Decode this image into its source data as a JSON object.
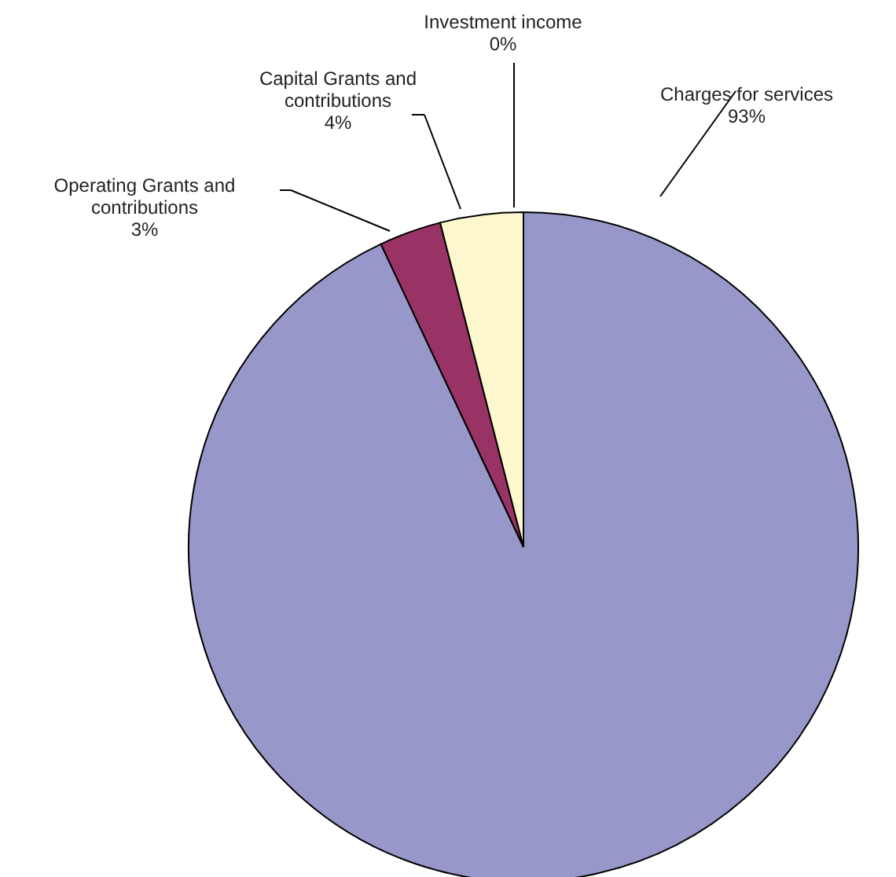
{
  "chart_data": {
    "type": "pie",
    "categories": [
      "Charges for services",
      "Operating Grants and contributions",
      "Capital Grants and contributions",
      "Investment income"
    ],
    "values": [
      93,
      3,
      4,
      0
    ],
    "value_labels": [
      "93%",
      "3%",
      "4%",
      "0%"
    ],
    "colors": [
      "#9797c9",
      "#993366",
      "#fcf7cc",
      "#ccffff"
    ]
  }
}
